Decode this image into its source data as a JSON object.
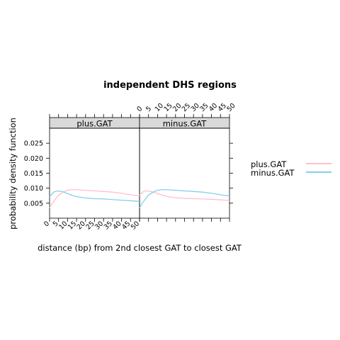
{
  "chart_data": {
    "type": "line",
    "title": "independent DHS regions",
    "xlabel": "distance (bp) from 2nd closest GAT to closest GAT",
    "ylabel": "probability density function",
    "xlim": [
      0,
      50
    ],
    "ylim": [
      0,
      0.03
    ],
    "x_ticks": [
      0,
      5,
      10,
      15,
      20,
      25,
      30,
      35,
      40,
      45,
      50
    ],
    "x_tick_labels": [
      "0",
      "5",
      "10",
      "15",
      "20",
      "25",
      "30",
      "35",
      "40",
      "45",
      "50"
    ],
    "y_ticks": [
      0.005,
      0.01,
      0.015,
      0.02,
      0.025
    ],
    "y_tick_labels": [
      "0.005",
      "0.010",
      "0.015",
      "0.020",
      "0.025"
    ],
    "grid": false,
    "legend_position": "right",
    "x": [
      0,
      2.5,
      5,
      7.5,
      10,
      12.5,
      15,
      20,
      25,
      30,
      35,
      40,
      45,
      50
    ],
    "panels": [
      {
        "name": "plus.GAT",
        "series": [
          {
            "name": "plus.GAT",
            "color": "#ffc0cb",
            "values": [
              0.0035,
              0.0058,
              0.0077,
              0.0087,
              0.0093,
              0.0095,
              0.0095,
              0.0093,
              0.0091,
              0.0089,
              0.0087,
              0.0083,
              0.0078,
              0.0074
            ]
          },
          {
            "name": "minus.GAT",
            "color": "#87ceeb",
            "values": [
              0.0072,
              0.0088,
              0.0091,
              0.0088,
              0.0082,
              0.0076,
              0.0072,
              0.0067,
              0.0065,
              0.0064,
              0.0062,
              0.006,
              0.0058,
              0.0056
            ]
          }
        ]
      },
      {
        "name": "minus.GAT",
        "series": [
          {
            "name": "plus.GAT",
            "color": "#ffc0cb",
            "values": [
              0.0078,
              0.009,
              0.0091,
              0.0087,
              0.0082,
              0.0077,
              0.0073,
              0.0068,
              0.0066,
              0.0065,
              0.0064,
              0.0063,
              0.0061,
              0.0059
            ]
          },
          {
            "name": "minus.GAT",
            "color": "#87ceeb",
            "values": [
              0.0035,
              0.0058,
              0.0077,
              0.0087,
              0.0093,
              0.0095,
              0.0095,
              0.0093,
              0.0091,
              0.0089,
              0.0087,
              0.0083,
              0.0078,
              0.0074
            ]
          }
        ]
      }
    ],
    "legend": [
      {
        "name": "plus.GAT",
        "color": "#ffc0cb"
      },
      {
        "name": "minus.GAT",
        "color": "#87ceeb"
      }
    ]
  }
}
